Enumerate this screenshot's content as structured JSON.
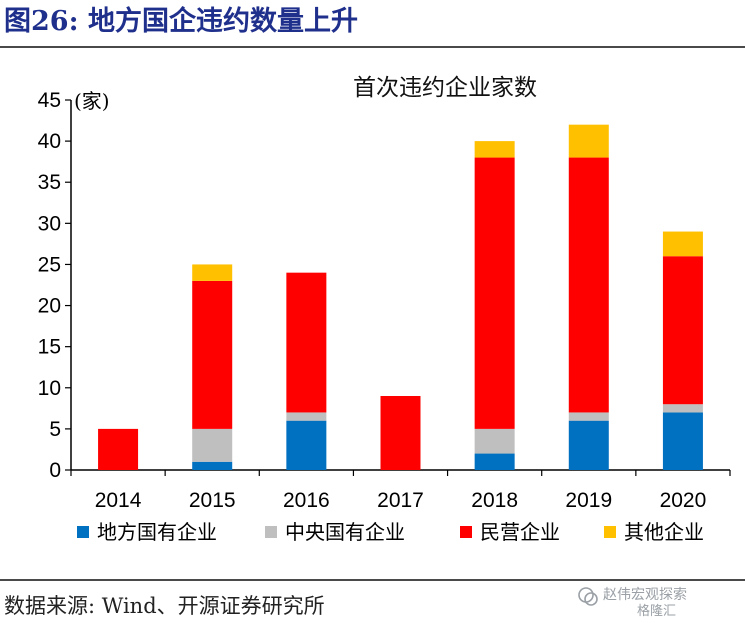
{
  "figure_title": "图26:   地方国企违约数量上升",
  "source_text": "数据来源:  Wind、开源证券研究所",
  "watermark": {
    "line1": "赵伟宏观探索",
    "line2": "格隆汇"
  },
  "chart_data": {
    "type": "bar",
    "stacked": true,
    "title": "首次违约企业家数",
    "ylabel": "(家)",
    "xlabel": "",
    "ylim": [
      0,
      45
    ],
    "yticks": [
      0,
      5,
      10,
      15,
      20,
      25,
      30,
      35,
      40,
      45
    ],
    "categories": [
      "2014",
      "2015",
      "2016",
      "2017",
      "2018",
      "2019",
      "2020"
    ],
    "legend_position": "bottom",
    "grid": false,
    "series": [
      {
        "name": "地方国有企业",
        "color": "#0070c0",
        "values": [
          0,
          1,
          6,
          0,
          2,
          6,
          7
        ]
      },
      {
        "name": "中央国有企业",
        "color": "#bfbfbf",
        "values": [
          0,
          4,
          1,
          0,
          3,
          1,
          1
        ]
      },
      {
        "name": "民营企业",
        "color": "#ff0000",
        "values": [
          5,
          18,
          17,
          9,
          33,
          31,
          18
        ]
      },
      {
        "name": "其他企业",
        "color": "#ffc000",
        "values": [
          0,
          2,
          0,
          0,
          2,
          4,
          3
        ]
      }
    ]
  }
}
